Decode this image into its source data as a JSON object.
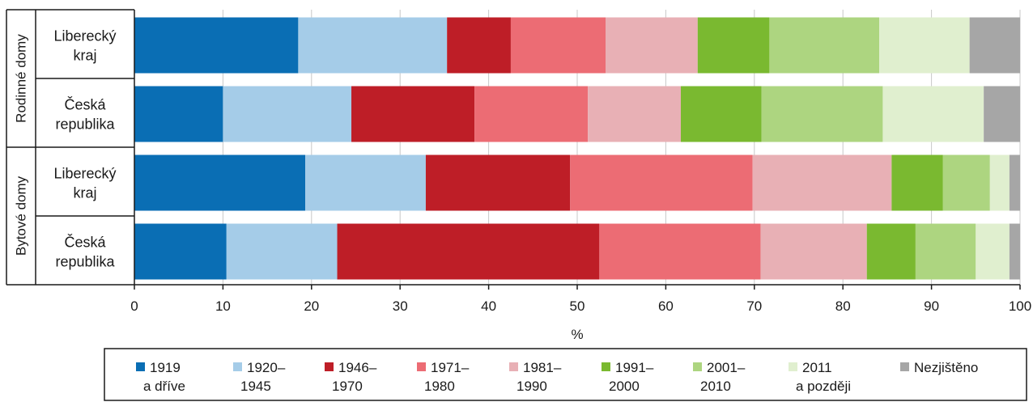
{
  "chart_data": {
    "type": "bar",
    "orientation": "horizontal",
    "stacked": true,
    "xlabel": "%",
    "xlim": [
      0,
      100
    ],
    "xticks": [
      0,
      10,
      20,
      30,
      40,
      50,
      60,
      70,
      80,
      90,
      100
    ],
    "grid": true,
    "legend_position": "bottom",
    "groups": [
      {
        "label": "Rodinné domy",
        "categories": [
          {
            "label": "Liberecký kraj",
            "lines": [
              "Liberecký",
              "kraj"
            ]
          },
          {
            "label": "Česká republika",
            "lines": [
              "Česká",
              "republika"
            ]
          }
        ]
      },
      {
        "label": "Bytové domy",
        "categories": [
          {
            "label": "Liberecký kraj",
            "lines": [
              "Liberecký",
              "kraj"
            ]
          },
          {
            "label": "Česká republika",
            "lines": [
              "Česká",
              "republika"
            ]
          }
        ]
      }
    ],
    "series": [
      {
        "name": "1919 a dříve",
        "lines": [
          "1919",
          "a dříve"
        ],
        "color": "#0a6eb4",
        "values": [
          18.5,
          10.0,
          19.3,
          10.4
        ]
      },
      {
        "name": "1920–1945",
        "lines": [
          "1920–",
          "1945"
        ],
        "color": "#a5cce8",
        "values": [
          16.8,
          14.5,
          13.6,
          12.5
        ]
      },
      {
        "name": "1946–1970",
        "lines": [
          "1946–",
          "1970"
        ],
        "color": "#be1e27",
        "values": [
          7.2,
          13.9,
          16.3,
          29.6
        ]
      },
      {
        "name": "1971–1980",
        "lines": [
          "1971–",
          "1980"
        ],
        "color": "#ec6c74",
        "values": [
          10.7,
          12.8,
          20.6,
          18.2
        ]
      },
      {
        "name": "1981–1990",
        "lines": [
          "1981–",
          "1990"
        ],
        "color": "#e8b0b5",
        "values": [
          10.4,
          10.5,
          15.7,
          12.0
        ]
      },
      {
        "name": "1991–2000",
        "lines": [
          "1991–",
          "2000"
        ],
        "color": "#7ab930",
        "values": [
          8.1,
          9.1,
          5.8,
          5.5
        ]
      },
      {
        "name": "2001–2010",
        "lines": [
          "2001–",
          "2010"
        ],
        "color": "#add580",
        "values": [
          12.4,
          13.7,
          5.3,
          6.8
        ]
      },
      {
        "name": "2011 a později",
        "lines": [
          "2011",
          "a později"
        ],
        "color": "#e0efcf",
        "values": [
          10.2,
          11.4,
          2.2,
          3.8
        ]
      },
      {
        "name": "Nezjištěno",
        "lines": [
          "Nezjištěno"
        ],
        "color": "#a6a6a6",
        "values": [
          5.7,
          4.1,
          1.2,
          1.2
        ]
      }
    ]
  }
}
